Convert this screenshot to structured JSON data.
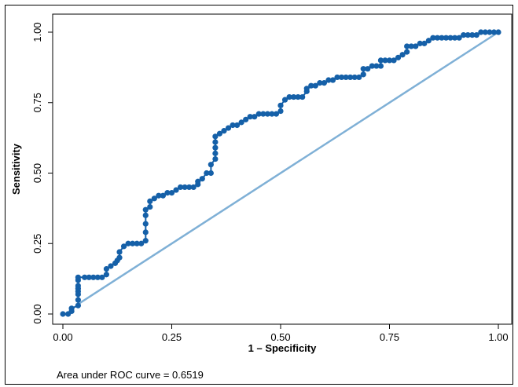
{
  "chart_data": {
    "type": "line",
    "xlabel": "1 – Specificity",
    "ylabel": "Sensitivity",
    "xlim": [
      0,
      1
    ],
    "ylim": [
      0,
      1
    ],
    "x_ticks": [
      "0.00",
      "0.25",
      "0.50",
      "0.75",
      "1.00"
    ],
    "y_ticks": [
      "0.00",
      "0.25",
      "0.50",
      "0.75",
      "1.00"
    ],
    "grid": false,
    "legend": "none",
    "series": [
      {
        "role": "roc-curve",
        "color": "#1560a8",
        "x": [
          0.0,
          0.012,
          0.02,
          0.02,
          0.035,
          0.035,
          0.035,
          0.035,
          0.035,
          0.035,
          0.035,
          0.035,
          0.05,
          0.06,
          0.07,
          0.08,
          0.09,
          0.1,
          0.1,
          0.11,
          0.12,
          0.125,
          0.13,
          0.13,
          0.14,
          0.15,
          0.16,
          0.17,
          0.18,
          0.19,
          0.19,
          0.19,
          0.19,
          0.19,
          0.2,
          0.2,
          0.21,
          0.22,
          0.23,
          0.24,
          0.25,
          0.26,
          0.27,
          0.28,
          0.29,
          0.3,
          0.31,
          0.31,
          0.32,
          0.33,
          0.34,
          0.34,
          0.35,
          0.35,
          0.35,
          0.35,
          0.35,
          0.36,
          0.37,
          0.38,
          0.39,
          0.4,
          0.41,
          0.42,
          0.43,
          0.44,
          0.45,
          0.46,
          0.47,
          0.48,
          0.49,
          0.5,
          0.5,
          0.51,
          0.52,
          0.53,
          0.54,
          0.55,
          0.56,
          0.56,
          0.57,
          0.58,
          0.59,
          0.6,
          0.61,
          0.62,
          0.63,
          0.64,
          0.65,
          0.66,
          0.67,
          0.68,
          0.69,
          0.69,
          0.7,
          0.71,
          0.72,
          0.73,
          0.73,
          0.74,
          0.75,
          0.76,
          0.77,
          0.78,
          0.79,
          0.79,
          0.8,
          0.81,
          0.82,
          0.83,
          0.84,
          0.85,
          0.86,
          0.87,
          0.88,
          0.89,
          0.9,
          0.91,
          0.92,
          0.93,
          0.94,
          0.95,
          0.96,
          0.97,
          0.98,
          0.99,
          1.0
        ],
        "y": [
          0.0,
          0.0,
          0.01,
          0.02,
          0.03,
          0.05,
          0.07,
          0.08,
          0.09,
          0.1,
          0.12,
          0.13,
          0.13,
          0.13,
          0.13,
          0.13,
          0.13,
          0.14,
          0.16,
          0.17,
          0.18,
          0.19,
          0.2,
          0.22,
          0.24,
          0.25,
          0.25,
          0.25,
          0.25,
          0.26,
          0.29,
          0.32,
          0.35,
          0.37,
          0.38,
          0.4,
          0.41,
          0.42,
          0.42,
          0.43,
          0.43,
          0.44,
          0.45,
          0.45,
          0.45,
          0.45,
          0.46,
          0.47,
          0.48,
          0.5,
          0.5,
          0.53,
          0.55,
          0.57,
          0.59,
          0.61,
          0.63,
          0.64,
          0.65,
          0.66,
          0.67,
          0.67,
          0.68,
          0.69,
          0.7,
          0.7,
          0.71,
          0.71,
          0.71,
          0.71,
          0.71,
          0.72,
          0.74,
          0.76,
          0.77,
          0.77,
          0.77,
          0.77,
          0.79,
          0.8,
          0.81,
          0.81,
          0.82,
          0.82,
          0.83,
          0.83,
          0.84,
          0.84,
          0.84,
          0.84,
          0.84,
          0.84,
          0.85,
          0.87,
          0.87,
          0.88,
          0.88,
          0.88,
          0.9,
          0.9,
          0.9,
          0.9,
          0.91,
          0.92,
          0.93,
          0.95,
          0.95,
          0.95,
          0.96,
          0.96,
          0.97,
          0.98,
          0.98,
          0.98,
          0.98,
          0.98,
          0.98,
          0.98,
          0.99,
          0.99,
          0.99,
          0.99,
          1.0,
          1.0,
          1.0,
          1.0,
          1.0
        ]
      },
      {
        "role": "reference-line",
        "color": "#7fb0d6",
        "x": [
          0.035,
          1.0
        ],
        "y": [
          0.035,
          1.0
        ]
      }
    ],
    "annotation": "Area under ROC curve = 0.6519"
  }
}
